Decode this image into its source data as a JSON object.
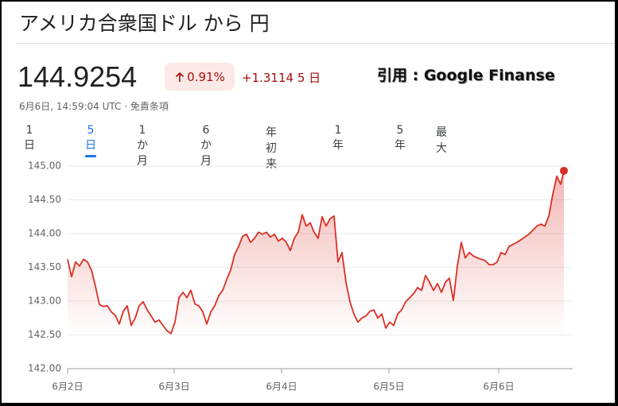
{
  "header": {
    "title": "アメリカ合衆国ドル から 円",
    "price": "144.9254",
    "change_pct": "0.91%",
    "change_abs": "+1.3114",
    "period": "5 日",
    "timestamp": "6月6日, 14:59:04 UTC ·",
    "disclaimer": "免責条項",
    "note": "引用 : Google Finanse"
  },
  "tabs": {
    "items": [
      "1 日",
      "5 日",
      "1 か月",
      "6 か月",
      "年初来",
      "1 年",
      "5 年",
      "最大"
    ],
    "selected": 1
  },
  "chart_data": {
    "type": "line",
    "grid": true,
    "x": [
      0,
      1,
      2,
      3,
      4,
      5,
      6,
      7,
      8,
      9,
      10,
      11,
      12,
      13,
      14,
      15,
      16,
      17,
      18,
      19,
      20,
      21,
      22,
      23,
      24,
      25,
      26,
      27,
      28,
      29,
      30,
      31,
      32,
      33,
      34,
      35,
      36,
      37,
      38,
      39,
      40,
      41,
      42,
      43,
      44,
      45,
      46,
      47,
      48,
      49,
      50,
      51,
      52,
      53,
      54,
      55,
      56,
      57,
      58,
      59,
      60,
      61,
      62,
      63,
      64,
      65,
      66,
      67,
      68,
      69,
      70,
      71,
      72,
      73,
      74,
      75,
      76,
      77,
      78,
      79,
      80,
      81,
      82,
      83,
      84,
      85,
      86,
      87,
      88,
      89,
      90,
      91,
      92,
      93,
      94,
      95,
      96,
      97,
      98,
      99,
      100,
      101,
      102,
      103,
      104,
      105,
      106,
      107,
      108,
      109,
      110,
      111,
      112,
      113,
      114,
      115,
      116,
      117,
      118,
      119,
      120,
      121,
      122,
      123,
      124,
      124.8
    ],
    "series": [
      {
        "color": "#d93025",
        "values": [
          143.62,
          143.36,
          143.58,
          143.52,
          143.62,
          143.58,
          143.46,
          143.22,
          142.95,
          142.92,
          142.93,
          142.84,
          142.79,
          142.66,
          142.85,
          142.93,
          142.64,
          142.75,
          142.93,
          142.99,
          142.87,
          142.78,
          142.69,
          142.72,
          142.64,
          142.56,
          142.52,
          142.69,
          143.05,
          143.13,
          143.05,
          143.16,
          142.96,
          142.93,
          142.84,
          142.66,
          142.84,
          142.93,
          143.08,
          143.16,
          143.32,
          143.46,
          143.69,
          143.81,
          143.96,
          143.99,
          143.87,
          143.93,
          144.02,
          143.99,
          144.02,
          143.95,
          143.99,
          143.89,
          143.93,
          143.87,
          143.75,
          143.93,
          144.02,
          144.28,
          144.11,
          144.16,
          144.02,
          143.93,
          144.25,
          144.11,
          144.22,
          144.26,
          143.58,
          143.72,
          143.28,
          142.99,
          142.81,
          142.69,
          142.75,
          142.78,
          142.85,
          142.87,
          142.75,
          142.81,
          142.6,
          142.69,
          142.64,
          142.81,
          142.87,
          142.99,
          143.05,
          143.11,
          143.2,
          143.16,
          143.38,
          143.28,
          143.16,
          143.26,
          143.13,
          143.28,
          143.34,
          143.01,
          143.52,
          143.87,
          143.64,
          143.72,
          143.67,
          143.64,
          143.62,
          143.6,
          143.54,
          143.54,
          143.58,
          143.72,
          143.69,
          143.81,
          143.84,
          143.87,
          143.91,
          143.95,
          143.99,
          144.05,
          144.11,
          144.14,
          144.11,
          144.26,
          144.58,
          144.85,
          144.73,
          144.93
        ]
      }
    ],
    "xlim": [
      0,
      127
    ],
    "xticks": [
      {
        "value": 0,
        "label": "6月2日"
      },
      {
        "value": 26.8,
        "label": "6月3日"
      },
      {
        "value": 53.8,
        "label": "6月4日"
      },
      {
        "value": 80.8,
        "label": "6月5日"
      },
      {
        "value": 108.4,
        "label": "6月6日"
      }
    ],
    "ylim": [
      142,
      145
    ],
    "yticks": [
      {
        "value": 142,
        "label": "142.00"
      },
      {
        "value": 142.5,
        "label": "142.50"
      },
      {
        "value": 143,
        "label": "143.00"
      },
      {
        "value": 143.5,
        "label": "143.50"
      },
      {
        "value": 144,
        "label": "144.00"
      },
      {
        "value": 144.5,
        "label": "144.50"
      },
      {
        "value": 145,
        "label": "145.00"
      }
    ]
  }
}
